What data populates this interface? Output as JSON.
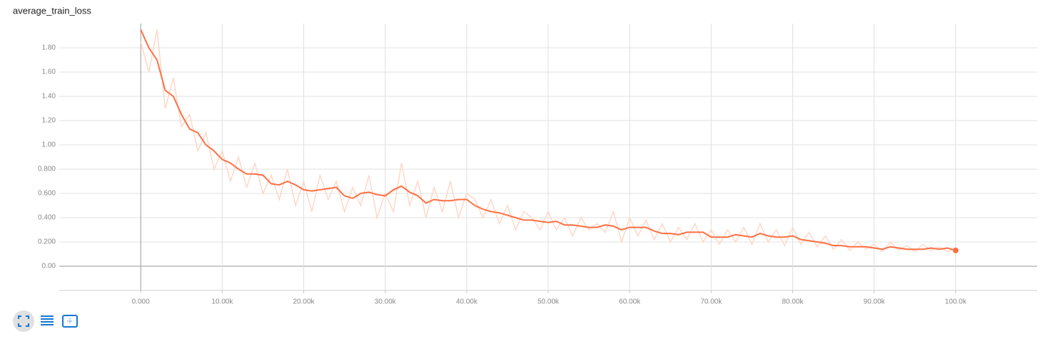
{
  "chart_data": {
    "type": "line",
    "title": "average_train_loss",
    "x": [
      0,
      1000,
      2000,
      3000,
      4000,
      5000,
      6000,
      7000,
      8000,
      9000,
      10000,
      11000,
      12000,
      13000,
      14000,
      15000,
      16000,
      17000,
      18000,
      19000,
      20000,
      21000,
      22000,
      23000,
      24000,
      25000,
      26000,
      27000,
      28000,
      29000,
      30000,
      31000,
      32000,
      33000,
      34000,
      35000,
      36000,
      37000,
      38000,
      39000,
      40000,
      41000,
      42000,
      43000,
      44000,
      45000,
      46000,
      47000,
      48000,
      49000,
      50000,
      51000,
      52000,
      53000,
      54000,
      55000,
      56000,
      57000,
      58000,
      59000,
      60000,
      61000,
      62000,
      63000,
      64000,
      65000,
      66000,
      67000,
      68000,
      69000,
      70000,
      71000,
      72000,
      73000,
      74000,
      75000,
      76000,
      77000,
      78000,
      79000,
      80000,
      81000,
      82000,
      83000,
      84000,
      85000,
      86000,
      87000,
      88000,
      89000,
      90000,
      91000,
      92000,
      93000,
      94000,
      95000,
      96000,
      97000,
      98000,
      99000,
      100000
    ],
    "series": [
      {
        "color": "#fdd8c8",
        "values": [
          1.85,
          1.6,
          1.95,
          1.3,
          1.55,
          1.15,
          1.25,
          0.95,
          1.1,
          0.8,
          0.95,
          0.7,
          0.9,
          0.65,
          0.85,
          0.6,
          0.75,
          0.55,
          0.8,
          0.5,
          0.7,
          0.45,
          0.75,
          0.55,
          0.7,
          0.45,
          0.65,
          0.5,
          0.75,
          0.4,
          0.6,
          0.45,
          0.85,
          0.5,
          0.7,
          0.4,
          0.65,
          0.45,
          0.7,
          0.4,
          0.6,
          0.55,
          0.4,
          0.55,
          0.35,
          0.5,
          0.3,
          0.45,
          0.4,
          0.3,
          0.45,
          0.3,
          0.4,
          0.25,
          0.4,
          0.3,
          0.35,
          0.28,
          0.45,
          0.2,
          0.4,
          0.25,
          0.38,
          0.22,
          0.35,
          0.2,
          0.32,
          0.22,
          0.35,
          0.2,
          0.3,
          0.18,
          0.3,
          0.2,
          0.32,
          0.18,
          0.35,
          0.2,
          0.3,
          0.17,
          0.32,
          0.18,
          0.28,
          0.16,
          0.25,
          0.14,
          0.22,
          0.13,
          0.2,
          0.14,
          0.18,
          0.12,
          0.2,
          0.13,
          0.17,
          0.12,
          0.18,
          0.13,
          0.16,
          0.12,
          0.15
        ]
      },
      {
        "color": "#ff7043",
        "values": [
          1.95,
          1.8,
          1.7,
          1.45,
          1.4,
          1.25,
          1.13,
          1.1,
          1.0,
          0.95,
          0.88,
          0.85,
          0.8,
          0.76,
          0.76,
          0.75,
          0.68,
          0.67,
          0.7,
          0.67,
          0.63,
          0.62,
          0.63,
          0.64,
          0.65,
          0.58,
          0.56,
          0.6,
          0.61,
          0.59,
          0.58,
          0.63,
          0.66,
          0.61,
          0.58,
          0.52,
          0.55,
          0.54,
          0.54,
          0.55,
          0.55,
          0.5,
          0.47,
          0.45,
          0.44,
          0.42,
          0.4,
          0.38,
          0.38,
          0.37,
          0.36,
          0.37,
          0.34,
          0.34,
          0.33,
          0.32,
          0.32,
          0.34,
          0.33,
          0.3,
          0.32,
          0.32,
          0.32,
          0.29,
          0.27,
          0.27,
          0.26,
          0.28,
          0.28,
          0.28,
          0.24,
          0.24,
          0.24,
          0.26,
          0.25,
          0.24,
          0.27,
          0.25,
          0.24,
          0.24,
          0.25,
          0.22,
          0.21,
          0.2,
          0.19,
          0.17,
          0.17,
          0.16,
          0.16,
          0.16,
          0.15,
          0.14,
          0.16,
          0.15,
          0.14,
          0.14,
          0.14,
          0.15,
          0.14,
          0.15,
          0.13
        ]
      }
    ],
    "xlim": [
      -10000,
      110000
    ],
    "xticks": [
      {
        "value": 0,
        "label": "0.000"
      },
      {
        "value": 10000,
        "label": "10.00k"
      },
      {
        "value": 20000,
        "label": "20.00k"
      },
      {
        "value": 30000,
        "label": "30.00k"
      },
      {
        "value": 40000,
        "label": "40.00k"
      },
      {
        "value": 50000,
        "label": "50.00k"
      },
      {
        "value": 60000,
        "label": "60.00k"
      },
      {
        "value": 70000,
        "label": "70.00k"
      },
      {
        "value": 80000,
        "label": "80.00k"
      },
      {
        "value": 90000,
        "label": "90.00k"
      },
      {
        "value": 100000,
        "label": "100.0k"
      }
    ],
    "ylim": [
      -0.2,
      2.0
    ],
    "yticks": [
      {
        "value": 0,
        "label": "0.00"
      },
      {
        "value": 0.2,
        "label": "0.200"
      },
      {
        "value": 0.4,
        "label": "0.400"
      },
      {
        "value": 0.6,
        "label": "0.600"
      },
      {
        "value": 0.8,
        "label": "0.800"
      },
      {
        "value": 1.0,
        "label": "1.00"
      },
      {
        "value": 1.2,
        "label": "1.20"
      },
      {
        "value": 1.4,
        "label": "1.40"
      },
      {
        "value": 1.6,
        "label": "1.60"
      },
      {
        "value": 1.8,
        "label": "1.80"
      }
    ],
    "grid": true
  }
}
